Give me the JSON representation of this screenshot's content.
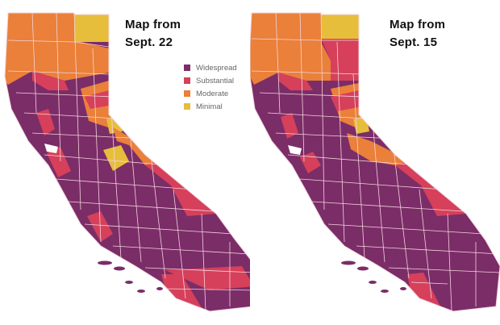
{
  "colors": {
    "widespread": "#7b2d68",
    "substantial": "#d6405a",
    "moderate": "#ea8039",
    "minimal": "#e7be3c",
    "county_border": "#f4d4dc"
  },
  "legend": [
    {
      "key": "widespread",
      "label": "Widespread"
    },
    {
      "key": "substantial",
      "label": "Substantial"
    },
    {
      "key": "moderate",
      "label": "Moderate"
    },
    {
      "key": "minimal",
      "label": "Minimal"
    }
  ],
  "maps": [
    {
      "title_line1": "Map from",
      "title_line2": "Sept. 22"
    },
    {
      "title_line1": "Map from",
      "title_line2": "Sept. 15"
    }
  ]
}
